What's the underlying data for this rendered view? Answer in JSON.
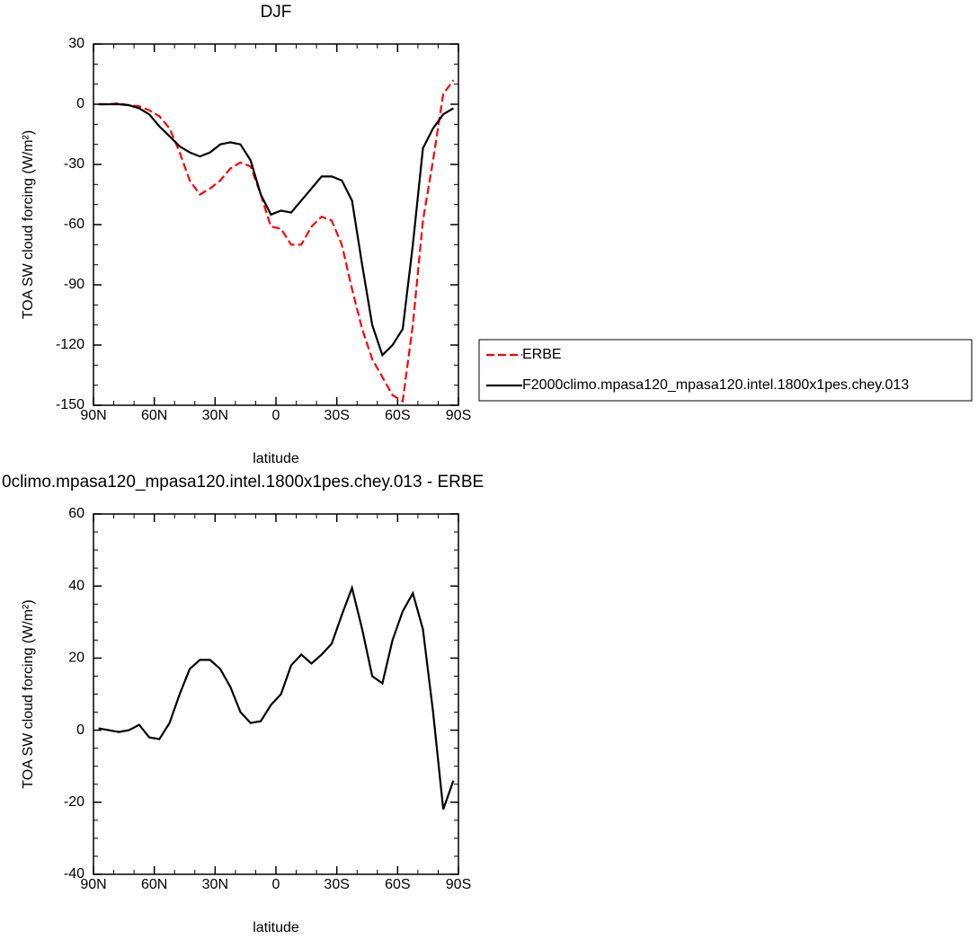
{
  "chart_data": [
    {
      "type": "line",
      "title": "DJF",
      "xlabel": "latitude",
      "ylabel": "TOA SW cloud forcing (W/m²)",
      "x": [
        87.5,
        82.5,
        77.5,
        72.5,
        67.5,
        62.5,
        57.5,
        52.5,
        47.5,
        42.5,
        37.5,
        32.5,
        27.5,
        22.5,
        17.5,
        12.5,
        7.5,
        2.5,
        -2.5,
        -7.5,
        -12.5,
        -17.5,
        -22.5,
        -27.5,
        -32.5,
        -37.5,
        -42.5,
        -47.5,
        -52.5,
        -57.5,
        -62.5,
        -67.5,
        -72.5,
        -77.5,
        -82.5,
        -87.5
      ],
      "series": [
        {
          "name": "ERBE",
          "color": "#ff0000",
          "linestyle": "dashed",
          "values": [
            0,
            0,
            0.5,
            -0.5,
            -1,
            -3,
            -6,
            -12,
            -24,
            -38,
            -45,
            -42,
            -38,
            -32,
            -29,
            -31,
            -45,
            -61,
            -62,
            -70,
            -70,
            -61,
            -56,
            -58,
            -70,
            -92,
            -112,
            -127,
            -136,
            -145,
            -148,
            -110,
            -58,
            -28,
            5,
            12
          ]
        },
        {
          "name": "F2000climo.mpasa120_mpasa120.intel.1800x1pes.chey.013",
          "color": "#000000",
          "linestyle": "solid",
          "values": [
            0,
            0,
            0,
            -0.5,
            -2,
            -5,
            -11,
            -16,
            -21,
            -24,
            -26,
            -24,
            -20,
            -19,
            -20,
            -28,
            -45,
            -55,
            -53,
            -54,
            -48,
            -42,
            -36,
            -36,
            -38,
            -48,
            -80,
            -110,
            -125,
            -120,
            -112,
            -70,
            -22,
            -12,
            -5,
            -2
          ]
        }
      ],
      "xlim": [
        90,
        -90
      ],
      "xticks": [
        {
          "value": 90,
          "label": "90N"
        },
        {
          "value": 60,
          "label": "60N"
        },
        {
          "value": 30,
          "label": "30N"
        },
        0,
        {
          "value": -30,
          "label": "30S"
        },
        {
          "value": -60,
          "label": "60S"
        },
        {
          "value": -90,
          "label": "90S"
        }
      ],
      "xminorticks": [
        80,
        70,
        50,
        40,
        20,
        10,
        -10,
        -20,
        -40,
        -50,
        -70,
        -80
      ],
      "ylim": [
        -150,
        30
      ],
      "yticks": [
        30,
        0,
        -30,
        -60,
        -90,
        -120,
        -150
      ],
      "yminorticks": [
        20,
        10,
        -10,
        -20,
        -40,
        -50,
        -70,
        -80,
        -100,
        -110,
        -130,
        -140
      ],
      "legend": "right"
    },
    {
      "type": "line",
      "title": "0climo.mpasa120_mpasa120.intel.1800x1pes.chey.013 - ERBE",
      "xlabel": "latitude",
      "ylabel": "TOA SW cloud forcing (W/m²)",
      "x": [
        87.5,
        82.5,
        77.5,
        72.5,
        67.5,
        62.5,
        57.5,
        52.5,
        47.5,
        42.5,
        37.5,
        32.5,
        27.5,
        22.5,
        17.5,
        12.5,
        7.5,
        2.5,
        -2.5,
        -7.5,
        -12.5,
        -17.5,
        -22.5,
        -27.5,
        -32.5,
        -37.5,
        -42.5,
        -47.5,
        -52.5,
        -57.5,
        -62.5,
        -67.5,
        -72.5,
        -77.5,
        -82.5,
        -87.5
      ],
      "series": [
        {
          "color": "#000000",
          "linestyle": "solid",
          "values": [
            0.5,
            0,
            -0.5,
            0,
            1.5,
            -2,
            -2.5,
            2,
            10,
            17,
            19.5,
            19.5,
            17,
            12,
            5,
            2,
            2.5,
            7,
            10,
            18,
            21,
            18.5,
            21,
            24,
            32,
            39.5,
            28,
            15,
            13,
            25,
            33,
            38,
            28,
            5,
            -22,
            -14
          ]
        }
      ],
      "xlim": [
        90,
        -90
      ],
      "xticks": [
        {
          "value": 90,
          "label": "90N"
        },
        {
          "value": 60,
          "label": "60N"
        },
        {
          "value": 30,
          "label": "30N"
        },
        0,
        {
          "value": -30,
          "label": "30S"
        },
        {
          "value": -60,
          "label": "60S"
        },
        {
          "value": -90,
          "label": "90S"
        }
      ],
      "xminorticks": [
        80,
        70,
        50,
        40,
        20,
        10,
        -10,
        -20,
        -40,
        -50,
        -70,
        -80
      ],
      "ylim": [
        -40,
        60
      ],
      "yticks": [
        60,
        40,
        20,
        0,
        -20,
        -40
      ],
      "yminorticks": [
        55,
        50,
        45,
        35,
        30,
        25,
        15,
        10,
        5,
        -5,
        -10,
        -15,
        -25,
        -30,
        -35
      ]
    }
  ]
}
